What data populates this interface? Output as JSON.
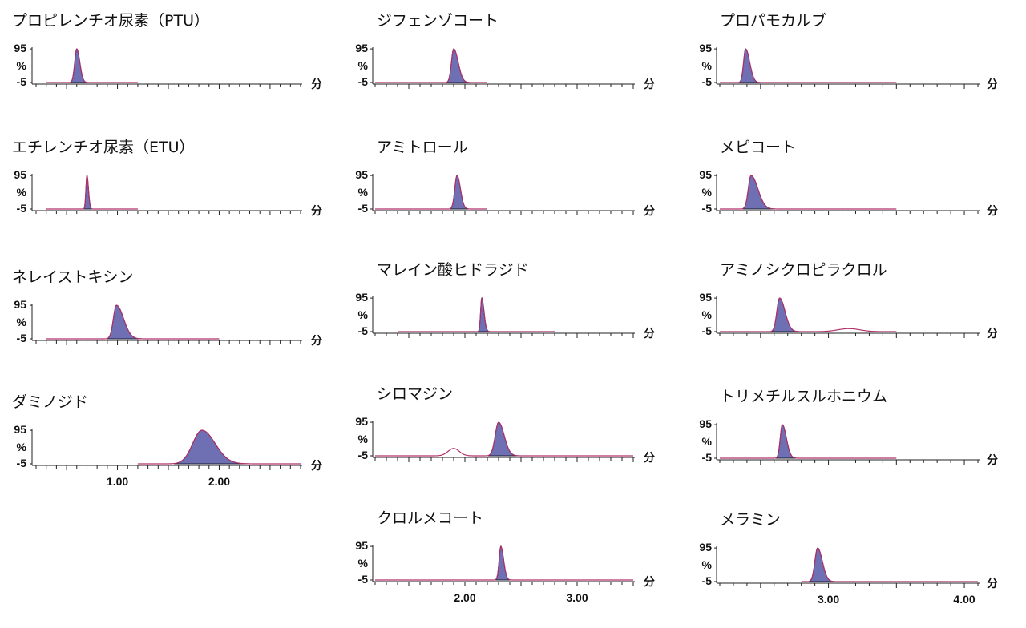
{
  "colors": {
    "peak_fill": "#6f6fb4",
    "peak_stroke": "#1b1b2e",
    "baseline": "#b0306a",
    "axis": "#222222"
  },
  "y_ticks": [
    "95",
    "%",
    "-5"
  ],
  "unit_label": "分",
  "chart_data": [
    {
      "type": "line",
      "title": "プロピレンチオ尿素（PTU）",
      "ylim": [
        -5,
        100
      ],
      "xlim": [
        0.2,
        2.8
      ],
      "trace": [
        0.3,
        1.2
      ],
      "peaks": [
        {
          "rt": 0.6,
          "height": 95,
          "w_left": 0.02,
          "w_right": 0.03
        }
      ],
      "humps": []
    },
    {
      "type": "line",
      "title": "エチレンチオ尿素（ETU）",
      "ylim": [
        -5,
        100
      ],
      "xlim": [
        0.2,
        2.8
      ],
      "trace": [
        0.3,
        1.2
      ],
      "peaks": [
        {
          "rt": 0.7,
          "height": 95,
          "w_left": 0.01,
          "w_right": 0.015
        }
      ],
      "humps": []
    },
    {
      "type": "line",
      "title": "ネレイストキシン",
      "ylim": [
        -5,
        100
      ],
      "xlim": [
        0.2,
        2.8
      ],
      "trace": [
        0.3,
        2.0
      ],
      "peaks": [
        {
          "rt": 0.99,
          "height": 95,
          "w_left": 0.03,
          "w_right": 0.07
        }
      ],
      "humps": []
    },
    {
      "type": "line",
      "title": "ダミノジド",
      "ylim": [
        -5,
        100
      ],
      "xlim": [
        0.2,
        2.8
      ],
      "trace": [
        1.2,
        2.8
      ],
      "peaks": [
        {
          "rt": 1.83,
          "height": 95,
          "w_left": 0.09,
          "w_right": 0.13
        }
      ],
      "humps": [],
      "x_ticks": [
        "1.00",
        "2.00"
      ],
      "x_tick_values": [
        1.0,
        2.0
      ]
    },
    {
      "type": "line",
      "title": "ジフェンゾコート",
      "ylim": [
        -5,
        100
      ],
      "xlim": [
        1.2,
        3.5
      ],
      "trace": [
        1.2,
        2.2
      ],
      "peaks": [
        {
          "rt": 1.9,
          "height": 95,
          "w_left": 0.02,
          "w_right": 0.04
        }
      ],
      "humps": []
    },
    {
      "type": "line",
      "title": "アミトロール",
      "ylim": [
        -5,
        100
      ],
      "xlim": [
        1.2,
        3.5
      ],
      "trace": [
        1.2,
        2.2
      ],
      "peaks": [
        {
          "rt": 1.93,
          "height": 95,
          "w_left": 0.02,
          "w_right": 0.03
        }
      ],
      "humps": []
    },
    {
      "type": "line",
      "title": "マレイン酸ヒドラジド",
      "ylim": [
        -5,
        100
      ],
      "xlim": [
        1.2,
        3.5
      ],
      "trace": [
        1.4,
        2.8
      ],
      "peaks": [
        {
          "rt": 2.15,
          "height": 95,
          "w_left": 0.01,
          "w_right": 0.02
        }
      ],
      "humps": []
    },
    {
      "type": "line",
      "title": "シロマジン",
      "ylim": [
        -5,
        100
      ],
      "xlim": [
        1.2,
        3.5
      ],
      "trace": [
        1.2,
        3.5
      ],
      "peaks": [
        {
          "rt": 2.3,
          "height": 95,
          "w_left": 0.03,
          "w_right": 0.05
        }
      ],
      "humps": [
        {
          "rt": 1.9,
          "height": 22,
          "w": 0.05
        }
      ]
    },
    {
      "type": "line",
      "title": "クロルメコート",
      "ylim": [
        -5,
        100
      ],
      "xlim": [
        1.2,
        3.5
      ],
      "trace": [
        1.2,
        3.5
      ],
      "peaks": [
        {
          "rt": 2.32,
          "height": 95,
          "w_left": 0.015,
          "w_right": 0.025
        }
      ],
      "humps": [],
      "x_ticks": [
        "2.00",
        "3.00"
      ],
      "x_tick_values": [
        2.0,
        3.0
      ]
    },
    {
      "type": "line",
      "title": "プロパモカルブ",
      "ylim": [
        -5,
        100
      ],
      "xlim": [
        2.2,
        4.1
      ],
      "trace": [
        2.2,
        3.5
      ],
      "peaks": [
        {
          "rt": 2.39,
          "height": 95,
          "w_left": 0.015,
          "w_right": 0.03
        }
      ],
      "humps": []
    },
    {
      "type": "line",
      "title": "メピコート",
      "ylim": [
        -5,
        100
      ],
      "xlim": [
        2.2,
        4.1
      ],
      "trace": [
        2.2,
        3.5
      ],
      "peaks": [
        {
          "rt": 2.43,
          "height": 95,
          "w_left": 0.02,
          "w_right": 0.05
        }
      ],
      "humps": []
    },
    {
      "type": "line",
      "title": "アミノシクロピラクロル",
      "ylim": [
        -5,
        100
      ],
      "xlim": [
        2.2,
        4.1
      ],
      "trace": [
        2.2,
        3.5
      ],
      "peaks": [
        {
          "rt": 2.64,
          "height": 95,
          "w_left": 0.02,
          "w_right": 0.04
        }
      ],
      "humps": [
        {
          "rt": 3.15,
          "height": 9,
          "w": 0.08
        }
      ]
    },
    {
      "type": "line",
      "title": "トリメチルスルホニウム",
      "ylim": [
        -5,
        100
      ],
      "xlim": [
        2.2,
        4.1
      ],
      "trace": [
        2.2,
        3.5
      ],
      "peaks": [
        {
          "rt": 2.66,
          "height": 95,
          "w_left": 0.015,
          "w_right": 0.03
        }
      ],
      "humps": []
    },
    {
      "type": "line",
      "title": "メラミン",
      "ylim": [
        -5,
        100
      ],
      "xlim": [
        2.2,
        4.1
      ],
      "trace": [
        2.8,
        4.1
      ],
      "peaks": [
        {
          "rt": 2.92,
          "height": 95,
          "w_left": 0.02,
          "w_right": 0.035
        }
      ],
      "humps": [],
      "x_ticks": [
        "3.00",
        "4.00"
      ],
      "x_tick_values": [
        3.0,
        4.0
      ]
    }
  ]
}
